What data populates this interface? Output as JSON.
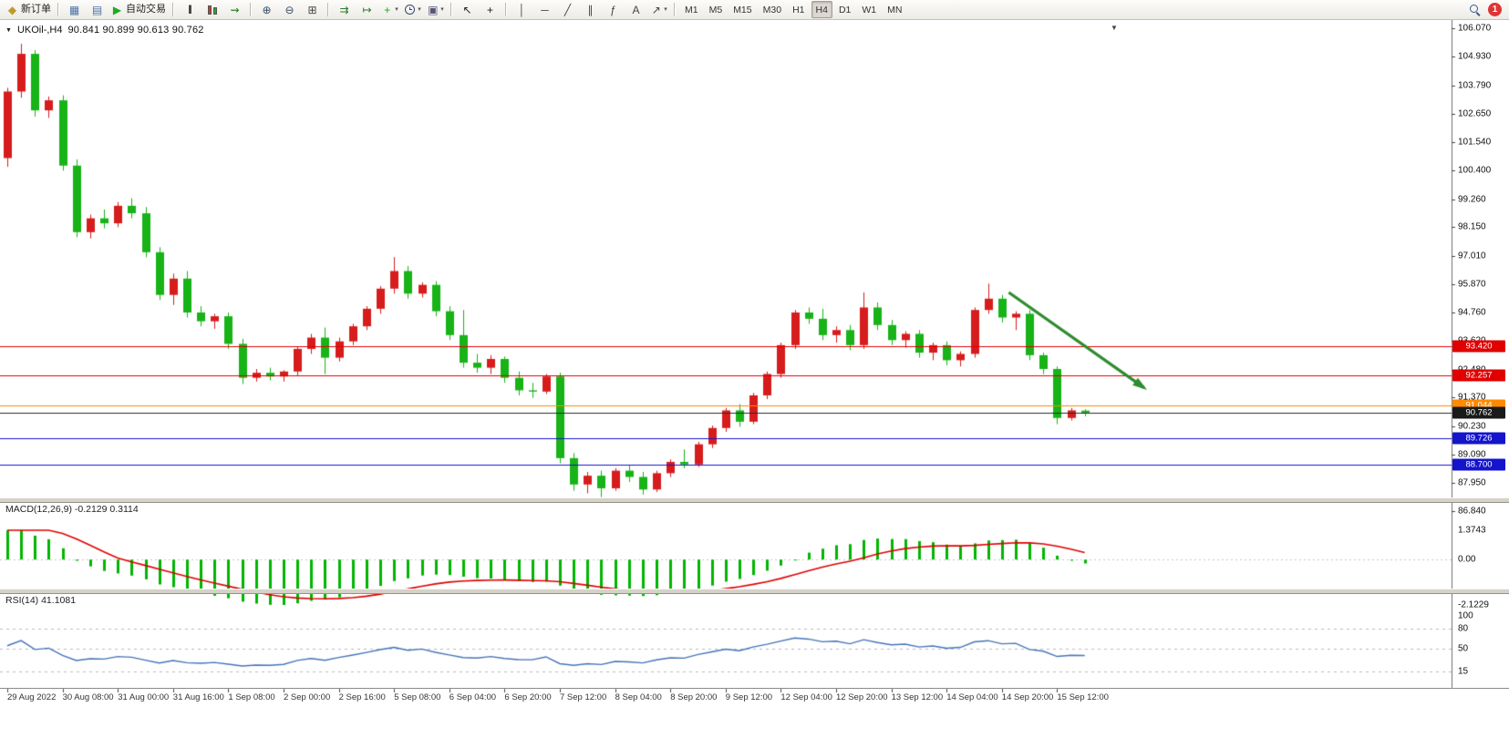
{
  "app": {
    "toolbar": {
      "items": [
        {
          "type": "button",
          "name": "new-order-button",
          "icon": "new-order-icon",
          "glyph": "◆",
          "glyph_color": "#c09a2e",
          "label": "新订单"
        },
        {
          "type": "separator"
        },
        {
          "type": "button",
          "name": "market-watch-button",
          "icon": "market-watch-icon",
          "glyph": "▦",
          "glyph_color": "#4a72a8"
        },
        {
          "type": "button",
          "name": "data-window-button",
          "icon": "data-window-icon",
          "glyph": "▤",
          "glyph_color": "#4a72a8"
        },
        {
          "type": "button",
          "name": "auto-trading-button",
          "icon": "auto-trading-icon",
          "glyph": "▶",
          "glyph_color": "#1faa1f",
          "label": "自动交易"
        },
        {
          "type": "separator"
        },
        {
          "type": "button",
          "name": "bar-chart-type-button",
          "icon": "bar-chart-icon",
          "glyph": "|||",
          "glyph_color": "#444444"
        },
        {
          "type": "button",
          "name": "candlestick-type-button",
          "icon": "candlestick-icon",
          "css": "candles"
        },
        {
          "type": "button",
          "name": "line-chart-type-button",
          "icon": "line-chart-icon",
          "glyph": "⇝",
          "glyph_color": "#2a7a2a"
        },
        {
          "type": "separator"
        },
        {
          "type": "button",
          "name": "zoom-in-button",
          "icon": "zoom-in-icon",
          "glyph": "⊕",
          "glyph_color": "#334a66"
        },
        {
          "type": "button",
          "name": "zoom-out-button",
          "icon": "zoom-out-icon",
          "glyph": "⊖",
          "glyph_color": "#334a66"
        },
        {
          "type": "button",
          "name": "tile-windows-button",
          "icon": "tile-windows-icon",
          "glyph": "⊞",
          "glyph_color": "#444444"
        },
        {
          "type": "separator"
        },
        {
          "type": "button",
          "name": "auto-scroll-button",
          "icon": "auto-scroll-icon",
          "glyph": "⇉",
          "glyph_color": "#2a7a2a"
        },
        {
          "type": "button",
          "name": "chart-shift-button",
          "icon": "chart-shift-icon",
          "glyph": "↦",
          "glyph_color": "#2a7a2a"
        },
        {
          "type": "button",
          "name": "add-indicator-button",
          "icon": "add-indicator-icon",
          "glyph": "+",
          "glyph_color": "#1faa1f",
          "dropdown": true
        },
        {
          "type": "button",
          "name": "periods-button",
          "icon": "clock-icon",
          "css": "clock",
          "dropdown": true
        },
        {
          "type": "button",
          "name": "templates-button",
          "icon": "template-icon",
          "glyph": "▣",
          "glyph_color": "#555577",
          "dropdown": true
        },
        {
          "type": "separator"
        },
        {
          "type": "button",
          "name": "cursor-button",
          "icon": "cursor-icon",
          "glyph": "↖",
          "glyph_color": "#222222"
        },
        {
          "type": "button",
          "name": "crosshair-button",
          "icon": "crosshair-icon",
          "glyph": "+",
          "glyph_color": "#222222"
        },
        {
          "type": "separator"
        },
        {
          "type": "button",
          "name": "vertical-line-button",
          "icon": "vertical-line-icon",
          "glyph": "│",
          "glyph_color": "#444444"
        },
        {
          "type": "button",
          "name": "horizontal-line-button",
          "icon": "horizontal-line-icon",
          "glyph": "─",
          "glyph_color": "#444444"
        },
        {
          "type": "button",
          "name": "trendline-button",
          "icon": "trendline-icon",
          "glyph": "╱",
          "glyph_color": "#444444"
        },
        {
          "type": "button",
          "name": "channel-button",
          "icon": "channel-icon",
          "glyph": "∥",
          "glyph_color": "#444444"
        },
        {
          "type": "button",
          "name": "fibonacci-button",
          "icon": "fibonacci-icon",
          "glyph": "ƒ",
          "glyph_color": "#444444"
        },
        {
          "type": "button",
          "name": "text-button",
          "icon": "text-icon",
          "glyph": "A",
          "glyph_color": "#444444"
        },
        {
          "type": "button",
          "name": "arrows-tool-button",
          "icon": "arrow-tool-icon",
          "glyph": "↗",
          "glyph_color": "#444444",
          "dropdown": true
        },
        {
          "type": "separator"
        }
      ],
      "timeframes": {
        "options": [
          "M1",
          "M5",
          "M15",
          "M30",
          "H1",
          "H4",
          "D1",
          "W1",
          "MN"
        ],
        "active": "H4"
      },
      "right": {
        "search_icon": "search-icon",
        "badge": "1"
      }
    }
  },
  "chart": {
    "symbol_label": "UKOil-,H4",
    "ohlc_values": "90.841 90.899 90.613 90.762",
    "price_axis": {
      "max": 106.07,
      "min": 86.84,
      "labels": [
        "106.070",
        "104.930",
        "103.790",
        "102.650",
        "101.540",
        "100.400",
        "99.260",
        "98.150",
        "97.010",
        "95.870",
        "94.760",
        "93.620",
        "92.480",
        "91.370",
        "90.230",
        "89.090",
        "87.950",
        "86.840"
      ]
    },
    "hlines": [
      {
        "price": 93.42,
        "label": "93.420",
        "color": "#e00000"
      },
      {
        "price": 92.257,
        "label": "92.257",
        "color": "#e00000"
      },
      {
        "price": 91.044,
        "label": "91.044",
        "color": "#ff8a00"
      },
      {
        "price": 89.726,
        "label": "89.726",
        "color": "#1414cc"
      },
      {
        "price": 88.7,
        "label": "88.700",
        "color": "#1414cc"
      }
    ],
    "current_price": {
      "value": 90.762,
      "label": "90.762",
      "box_color": "#1a1a1a",
      "line_color": "#2a2a2a"
    },
    "trend_arrow": {
      "from": {
        "bar": 72.5,
        "price": 95.55
      },
      "to": {
        "bar": 82.3,
        "price": 91.75
      },
      "color": "#2e8b2e"
    },
    "time_axis_labels": [
      "29 Aug 2022",
      "30 Aug 08:00",
      "31 Aug 00:00",
      "31 Aug 16:00",
      "1 Sep 08:00",
      "2 Sep 00:00",
      "2 Sep 16:00",
      "5 Sep 08:00",
      "6 Sep 04:00",
      "6 Sep 20:00",
      "7 Sep 12:00",
      "8 Sep 04:00",
      "8 Sep 20:00",
      "9 Sep 12:00",
      "12 Sep 04:00",
      "12 Sep 20:00",
      "13 Sep 12:00",
      "14 Sep 04:00",
      "14 Sep 20:00",
      "15 Sep 12:00"
    ],
    "bars_per_label": 4
  },
  "macd": {
    "header": "MACD(12,26,9) -0.2129 0.3114",
    "params": [
      12,
      26,
      9
    ],
    "values": {
      "main": "-0.2129",
      "signal": "0.3114"
    },
    "scale": {
      "max": 1.3743,
      "min": -2.1229
    },
    "axis_labels": [
      "1.3743",
      "0.00",
      "-2.1229"
    ],
    "histogram_color": "#00b400",
    "signal_color": "#e00000"
  },
  "rsi": {
    "header": "RSI(14) 41.1081",
    "period": 14,
    "value": "41.1081",
    "axis_labels": [
      "100",
      "80",
      "50",
      "15"
    ],
    "axis_values": [
      100,
      80,
      50,
      15
    ],
    "levels": [
      80,
      50,
      15
    ],
    "line_color": "#4673b8"
  },
  "chart_data": {
    "type": "candlestick",
    "symbol": "UKOil",
    "timeframe": "H4",
    "bull_color": "#d61c1c",
    "bear_color": "#17b317",
    "candles": [
      [
        100.9,
        103.7,
        100.55,
        103.55
      ],
      [
        103.55,
        105.45,
        103.3,
        105.05
      ],
      [
        105.05,
        105.2,
        102.55,
        102.8
      ],
      [
        102.8,
        103.35,
        102.5,
        103.2
      ],
      [
        103.2,
        103.4,
        100.4,
        100.6
      ],
      [
        100.6,
        100.85,
        97.75,
        97.95
      ],
      [
        97.95,
        98.65,
        97.7,
        98.5
      ],
      [
        98.5,
        98.85,
        98.1,
        98.3
      ],
      [
        98.3,
        99.15,
        98.15,
        99.0
      ],
      [
        99.0,
        99.3,
        98.5,
        98.7
      ],
      [
        98.7,
        98.95,
        96.95,
        97.15
      ],
      [
        97.15,
        97.35,
        95.25,
        95.45
      ],
      [
        95.45,
        96.3,
        95.05,
        96.1
      ],
      [
        96.1,
        96.4,
        94.55,
        94.75
      ],
      [
        94.75,
        95.0,
        94.2,
        94.4
      ],
      [
        94.4,
        94.7,
        94.1,
        94.6
      ],
      [
        94.6,
        94.75,
        93.3,
        93.5
      ],
      [
        93.5,
        93.7,
        91.9,
        92.15
      ],
      [
        92.15,
        92.5,
        92.0,
        92.35
      ],
      [
        92.35,
        92.55,
        92.05,
        92.2
      ],
      [
        92.2,
        92.45,
        92.0,
        92.4
      ],
      [
        92.4,
        93.4,
        92.25,
        93.3
      ],
      [
        93.3,
        93.9,
        93.1,
        93.75
      ],
      [
        93.75,
        94.15,
        92.3,
        92.95
      ],
      [
        92.95,
        93.75,
        92.8,
        93.6
      ],
      [
        93.6,
        94.3,
        93.45,
        94.2
      ],
      [
        94.2,
        95.0,
        94.05,
        94.9
      ],
      [
        94.9,
        95.8,
        94.7,
        95.7
      ],
      [
        95.7,
        96.95,
        95.5,
        96.4
      ],
      [
        96.4,
        96.6,
        95.3,
        95.5
      ],
      [
        95.5,
        95.95,
        95.35,
        95.85
      ],
      [
        95.85,
        96.0,
        94.6,
        94.8
      ],
      [
        94.8,
        95.0,
        93.65,
        93.85
      ],
      [
        93.85,
        94.85,
        92.55,
        92.75
      ],
      [
        92.75,
        93.1,
        92.35,
        92.55
      ],
      [
        92.55,
        93.05,
        92.3,
        92.9
      ],
      [
        92.9,
        93.0,
        91.95,
        92.15
      ],
      [
        92.15,
        92.4,
        91.45,
        91.65
      ],
      [
        91.65,
        91.95,
        91.35,
        91.6
      ],
      [
        91.6,
        92.3,
        91.5,
        92.2
      ],
      [
        92.2,
        92.35,
        88.75,
        88.95
      ],
      [
        88.95,
        89.15,
        87.65,
        87.9
      ],
      [
        87.9,
        88.4,
        87.55,
        88.25
      ],
      [
        88.25,
        88.45,
        87.4,
        87.75
      ],
      [
        87.75,
        88.55,
        87.65,
        88.45
      ],
      [
        88.45,
        88.65,
        88.0,
        88.2
      ],
      [
        88.2,
        88.4,
        87.5,
        87.7
      ],
      [
        87.7,
        88.45,
        87.6,
        88.35
      ],
      [
        88.35,
        88.9,
        88.2,
        88.8
      ],
      [
        88.8,
        89.3,
        88.55,
        88.7
      ],
      [
        88.7,
        89.6,
        88.6,
        89.5
      ],
      [
        89.5,
        90.25,
        89.35,
        90.15
      ],
      [
        90.15,
        90.95,
        90.0,
        90.85
      ],
      [
        90.85,
        91.1,
        90.2,
        90.4
      ],
      [
        90.4,
        91.55,
        90.3,
        91.45
      ],
      [
        91.45,
        92.4,
        91.3,
        92.3
      ],
      [
        92.3,
        93.55,
        92.15,
        93.45
      ],
      [
        93.45,
        94.85,
        93.3,
        94.75
      ],
      [
        94.75,
        94.95,
        94.3,
        94.5
      ],
      [
        94.5,
        94.9,
        93.65,
        93.85
      ],
      [
        93.85,
        94.2,
        93.55,
        94.05
      ],
      [
        94.05,
        94.25,
        93.25,
        93.45
      ],
      [
        93.45,
        95.55,
        93.3,
        94.95
      ],
      [
        94.95,
        95.15,
        94.05,
        94.25
      ],
      [
        94.25,
        94.45,
        93.45,
        93.65
      ],
      [
        93.65,
        94.0,
        93.35,
        93.9
      ],
      [
        93.9,
        94.05,
        92.95,
        93.15
      ],
      [
        93.15,
        93.55,
        92.85,
        93.45
      ],
      [
        93.45,
        93.6,
        92.65,
        92.85
      ],
      [
        92.85,
        93.2,
        92.6,
        93.1
      ],
      [
        93.1,
        94.95,
        92.95,
        94.85
      ],
      [
        94.85,
        95.9,
        94.7,
        95.3
      ],
      [
        95.3,
        95.45,
        94.35,
        94.55
      ],
      [
        94.55,
        94.8,
        94.05,
        94.7
      ],
      [
        94.7,
        94.85,
        92.85,
        93.05
      ],
      [
        93.05,
        93.15,
        92.3,
        92.5
      ],
      [
        92.5,
        92.6,
        90.3,
        90.55
      ],
      [
        90.55,
        90.95,
        90.45,
        90.85
      ],
      [
        90.841,
        90.899,
        90.613,
        90.762
      ]
    ]
  }
}
